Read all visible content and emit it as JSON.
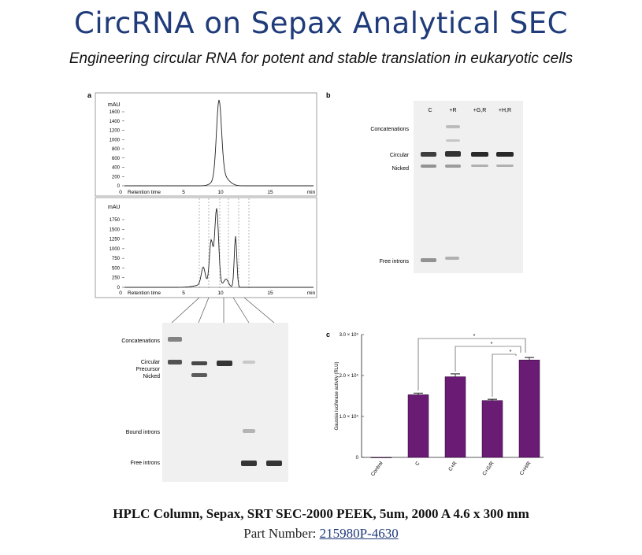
{
  "title": "CircRNA on Sepax Analytical SEC",
  "subtitle": "Engineering circular RNA for potent and stable translation in eukaryotic cells",
  "panel_a": {
    "label": "a",
    "chrom_top": {
      "unit": "mAU",
      "y_ticks": [
        "1600",
        "1400",
        "1200",
        "1000",
        "800",
        "600",
        "400",
        "200",
        "0"
      ],
      "x_ticks": [
        "0",
        "Retention time",
        "5",
        "10",
        "15",
        "min"
      ]
    },
    "chrom_bottom": {
      "unit": "mAU",
      "y_ticks": [
        "1750",
        "1500",
        "1250",
        "1000",
        "750",
        "500",
        "250",
        "0"
      ],
      "x_ticks": [
        "0",
        "Retention time",
        "5",
        "10",
        "15",
        "min"
      ]
    },
    "gel_labels": [
      "Concatenations",
      "Circular",
      "Precursor",
      "Nicked",
      "Bound introns",
      "Free introns"
    ]
  },
  "panel_b": {
    "label": "b",
    "lanes": [
      "C",
      "+R",
      "+G,R",
      "+H,R"
    ],
    "gel_labels": [
      "Concatenations",
      "Circular",
      "Nicked",
      "Free introns"
    ]
  },
  "panel_c": {
    "label": "c",
    "chart_data": {
      "type": "bar",
      "categories": [
        "Control",
        "C",
        "C+R",
        "C+G/R",
        "C+H/R"
      ],
      "values": [
        0,
        153000,
        197000,
        139000,
        238000
      ],
      "errors": [
        0,
        4000,
        7000,
        3000,
        6000
      ],
      "ylabel": "Gaussia luciferase activity (RLU)",
      "ylim": [
        0,
        300000
      ],
      "y_ticks": [
        "0",
        "1.0 × 10⁵",
        "2.0 × 10⁵",
        "3.0 × 10⁵"
      ],
      "bar_color": "#6a1b74",
      "significance": [
        "*",
        "*",
        "*"
      ]
    }
  },
  "footer": {
    "product": "HPLC Column, Sepax, SRT SEC-2000 PEEK, 5um, 2000 A 4.6 x 300 mm",
    "part_label": "Part Number:",
    "part_number": "215980P-4630"
  }
}
